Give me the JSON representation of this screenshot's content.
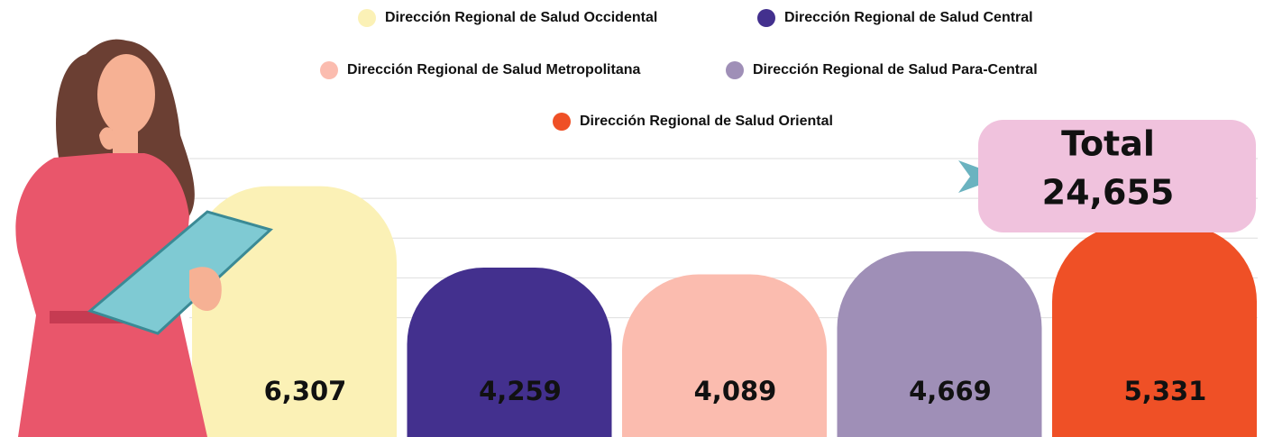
{
  "chart_data": {
    "type": "bar",
    "categories": [
      "Dirección Regional de Salud Occidental",
      "Dirección Regional de Salud Central",
      "Dirección Regional de Salud Metropolitana",
      "Dirección Regional de Salud Para-Central",
      "Dirección Regional de Salud Oriental"
    ],
    "values": [
      6307,
      4259,
      4089,
      4669,
      5331
    ],
    "value_labels": [
      "6,307",
      "4,259",
      "4,089",
      "4,669",
      "5,331"
    ],
    "colors": [
      "#fbf1b6",
      "#43308e",
      "#fbbcaf",
      "#9f8fb7",
      "#ef5026"
    ],
    "ylim": [
      0,
      7000
    ],
    "yticks": [
      3000,
      4000,
      5000,
      6000,
      7000
    ],
    "grid": true,
    "annotations": [
      "Total",
      "24,655"
    ]
  }
}
